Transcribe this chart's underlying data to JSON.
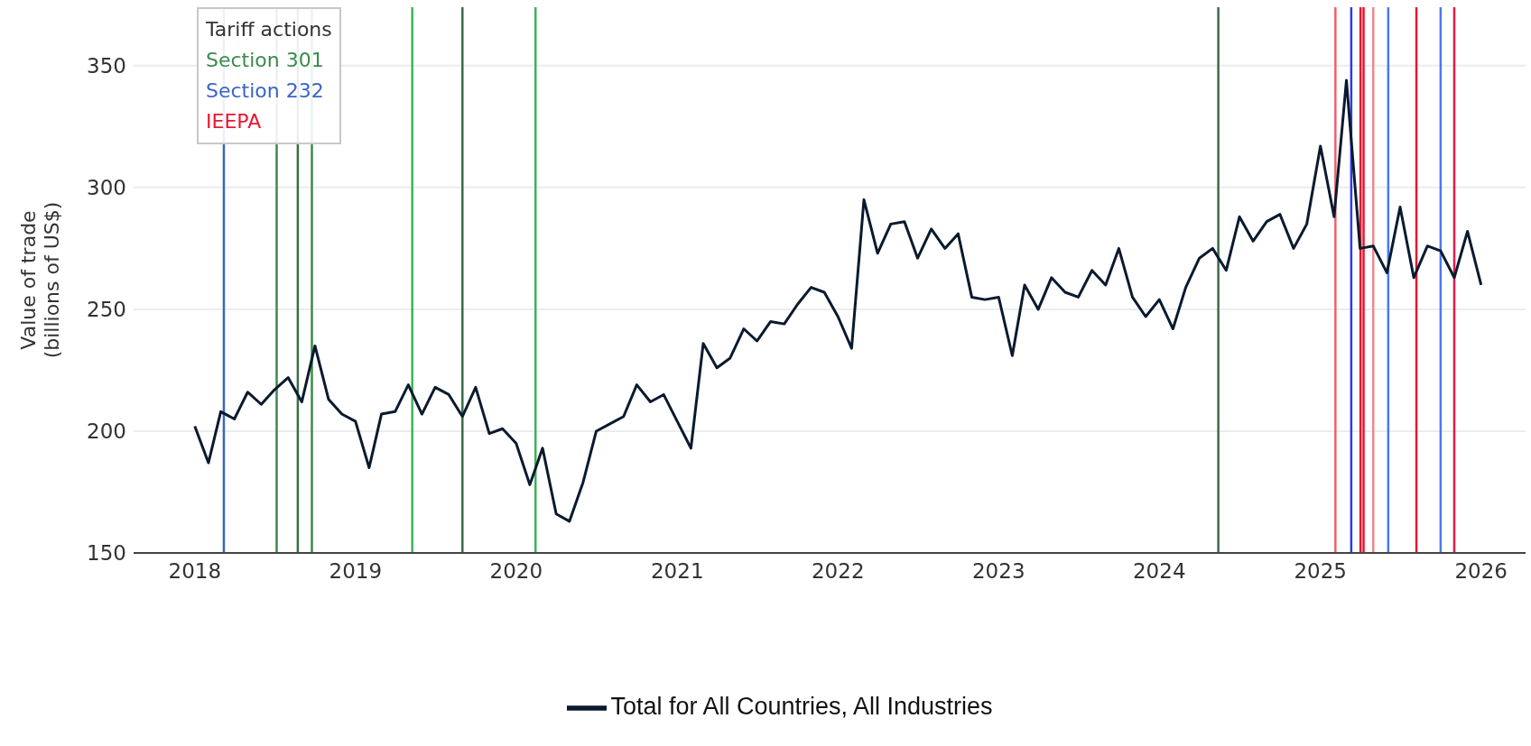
{
  "chart_data": {
    "type": "line",
    "ylabel": "Value of trade\n(billions of US$)",
    "annotations": [
      "Tariff actions",
      "Section 301",
      "Section 232",
      "IEEPA"
    ],
    "x": [
      "2018-01",
      "2018-02",
      "2018-03",
      "2018-04",
      "2018-05",
      "2018-06",
      "2018-07",
      "2018-08",
      "2018-09",
      "2018-10",
      "2018-11",
      "2018-12",
      "2019-01",
      "2019-02",
      "2019-03",
      "2019-04",
      "2019-05",
      "2019-06",
      "2019-07",
      "2019-08",
      "2019-09",
      "2019-10",
      "2019-11",
      "2019-12",
      "2020-01",
      "2020-02",
      "2020-03",
      "2020-04",
      "2020-05",
      "2020-06",
      "2020-07",
      "2020-08",
      "2020-09",
      "2020-10",
      "2020-11",
      "2020-12",
      "2021-01",
      "2021-02",
      "2021-03",
      "2021-04",
      "2021-05",
      "2021-06",
      "2021-07",
      "2021-08",
      "2021-09",
      "2021-10",
      "2021-11",
      "2021-12",
      "2022-01",
      "2022-02",
      "2022-03",
      "2022-04",
      "2022-05",
      "2022-06",
      "2022-07",
      "2022-08",
      "2022-09",
      "2022-10",
      "2022-11",
      "2022-12",
      "2023-01",
      "2023-02",
      "2023-03",
      "2023-04",
      "2023-05",
      "2023-06",
      "2023-07",
      "2023-08",
      "2023-09",
      "2023-10",
      "2023-11",
      "2023-12",
      "2024-01",
      "2024-02",
      "2024-03",
      "2024-04",
      "2024-05",
      "2024-06",
      "2024-07",
      "2024-08",
      "2024-09",
      "2024-10",
      "2024-11",
      "2024-12",
      "2025-01",
      "2025-02",
      "2025-03",
      "2025-04",
      "2025-05",
      "2025-06",
      "2025-07",
      "2025-08",
      "2025-09",
      "2025-10",
      "2025-11",
      "2025-12",
      "2026-01"
    ],
    "series": [
      {
        "name": "Total for All Countries, All Industries",
        "color": "#0a1a2e",
        "values": [
          202,
          187,
          208,
          205,
          216,
          211,
          217,
          222,
          212,
          235,
          213,
          207,
          204,
          185,
          207,
          208,
          219,
          207,
          218,
          215,
          206,
          218,
          199,
          201,
          195,
          178,
          193,
          166,
          163,
          179,
          200,
          203,
          206,
          219,
          212,
          215,
          204,
          193,
          236,
          226,
          230,
          242,
          237,
          245,
          244,
          252,
          259,
          257,
          247,
          234,
          295,
          273,
          285,
          286,
          271,
          283,
          275,
          281,
          255,
          254,
          255,
          231,
          260,
          250,
          263,
          257,
          255,
          266,
          260,
          275,
          255,
          247,
          254,
          242,
          259,
          271,
          275,
          266,
          288,
          278,
          286,
          289,
          275,
          285,
          317,
          288,
          344,
          275,
          276,
          265,
          292,
          263,
          276,
          274,
          263,
          282,
          260
        ]
      }
    ],
    "xlim": [
      "2017-08-15",
      "2026-04-12"
    ],
    "xticks": [
      "2018",
      "2019",
      "2020",
      "2021",
      "2022",
      "2023",
      "2024",
      "2025",
      "2026"
    ],
    "ylim": [
      150,
      374
    ],
    "yticks": [
      150,
      200,
      250,
      300,
      350
    ],
    "ref_lines": [
      {
        "axis": "x",
        "value": "2018-03-08",
        "color": "#3a64c8"
      },
      {
        "axis": "x",
        "value": "2018-07-06",
        "color": "#3c8a4c"
      },
      {
        "axis": "x",
        "value": "2018-08-23",
        "color": "#3b6b48"
      },
      {
        "axis": "x",
        "value": "2018-09-24",
        "color": "#3c8a4c"
      },
      {
        "axis": "x",
        "value": "2019-05-10",
        "color": "#3cb458"
      },
      {
        "axis": "x",
        "value": "2019-09-01",
        "color": "#3b6b48"
      },
      {
        "axis": "x",
        "value": "2020-02-14",
        "color": "#3cb458"
      },
      {
        "axis": "x",
        "value": "2024-05-14",
        "color": "#3b6b48"
      },
      {
        "axis": "x",
        "value": "2025-02-04",
        "color": "#f06070"
      },
      {
        "axis": "x",
        "value": "2025-03-12",
        "color": "#2a3ce8"
      },
      {
        "axis": "x",
        "value": "2025-04-02",
        "color": "#e8172f"
      },
      {
        "axis": "x",
        "value": "2025-04-09",
        "color": "#e8172f"
      },
      {
        "axis": "x",
        "value": "2025-05-01",
        "color": "#f08890"
      },
      {
        "axis": "x",
        "value": "2025-06-04",
        "color": "#4a78f0"
      },
      {
        "axis": "x",
        "value": "2025-08-07",
        "color": "#e8172f"
      },
      {
        "axis": "x",
        "value": "2025-10-01",
        "color": "#4a78f0"
      },
      {
        "axis": "x",
        "value": "2025-11-01",
        "color": "#e8174a"
      }
    ],
    "grid": "y",
    "legend": "bottom",
    "marker": "none",
    "line_style": "solid"
  }
}
